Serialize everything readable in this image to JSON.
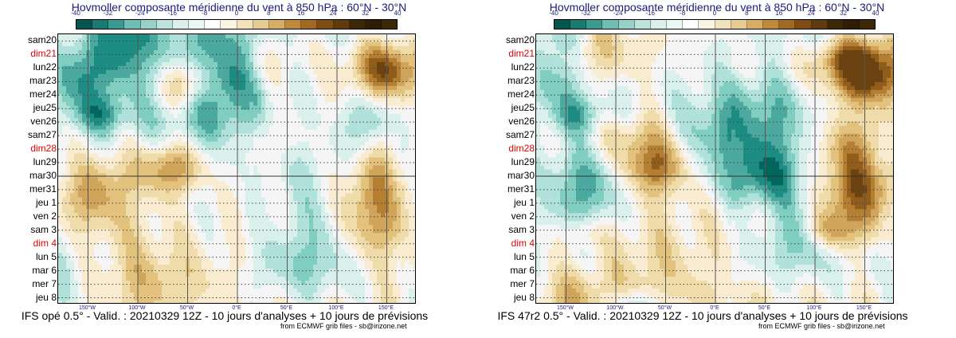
{
  "chart_data": [
    {
      "type": "heatmap",
      "title": "Hovmoller composante méridienne du vent à 850 hPa : 60°N - 30°N",
      "caption": "IFS opé 0.5° - Valid. : 20210329 12Z - 10 jours d'analyses + 10 jours de prévisions",
      "credit": "from ECMWF grib files - sb@irizone.net",
      "colorbar_ticks": [
        "-40",
        "-32",
        "-24",
        "-16",
        "-8",
        "0",
        "8",
        "16",
        "24",
        "32",
        "40"
      ],
      "y_labels": [
        "sam20",
        "dim21",
        "lun22",
        "mar23",
        "mer24",
        "jeu25",
        "ven26",
        "sam27",
        "dim28",
        "lun29",
        "mar30",
        "mer31",
        "jeu 1",
        "ven 2",
        "sam 3",
        "dim 4",
        "lun 5",
        "mar 6",
        "mer 7",
        "jeu 8"
      ],
      "weekend_labels": [
        "dim21",
        "dim28",
        "dim 4"
      ],
      "x_labels": [
        "150°W",
        "100°W",
        "50°W",
        "0°E",
        "50°E",
        "100°E",
        "150°E"
      ],
      "x_values": [
        -150,
        -100,
        -50,
        0,
        50,
        100,
        150
      ],
      "xlim": [
        -180,
        180
      ],
      "analysis_forecast_split": "mar30",
      "seed": 7
    },
    {
      "type": "heatmap",
      "title": "Hovmoller composante méridienne du vent à 850 hPa : 60°N - 30°N",
      "caption": "IFS 47r2 0.5° - Valid. : 20210329 12Z - 10 jours d'analyses + 10 jours de prévisions",
      "credit": "from ECMWF grib files - sb@irizone.net",
      "colorbar_ticks": [
        "-40",
        "-32",
        "-24",
        "-16",
        "-8",
        "0",
        "8",
        "16",
        "24",
        "32",
        "40"
      ],
      "y_labels": [
        "sam20",
        "dim21",
        "lun22",
        "mar23",
        "mer24",
        "jeu25",
        "ven26",
        "sam27",
        "dim28",
        "lun29",
        "mar30",
        "mer31",
        "jeu 1",
        "ven 2",
        "sam 3",
        "dim 4",
        "lun 5",
        "mar 6",
        "mer 7",
        "jeu 8"
      ],
      "weekend_labels": [
        "dim21",
        "dim28",
        "dim 4"
      ],
      "x_labels": [
        "150°W",
        "100°W",
        "50°W",
        "0°E",
        "50°E",
        "100°E",
        "150°E"
      ],
      "x_values": [
        -150,
        -100,
        -50,
        0,
        50,
        100,
        150
      ],
      "xlim": [
        -180,
        180
      ],
      "analysis_forecast_split": "mar30",
      "seed": 11
    }
  ],
  "colors": {
    "palette": [
      "#01665e",
      "#1d8c82",
      "#4ca9a0",
      "#80cdc1",
      "#b0e1da",
      "#d9f0ec",
      "#f5f5f5",
      "#f9ecd0",
      "#f0dcaa",
      "#e2c27d",
      "#d0a45a",
      "#b57f33",
      "#925d1a",
      "#6b4210"
    ],
    "colorbar": [
      "#05564f",
      "#1a7a72",
      "#3a9990",
      "#6fbdb3",
      "#99d1c8",
      "#bde3dc",
      "#d9f0ec",
      "#eaf6f4",
      "#ffffff",
      "#fbf3e1",
      "#f3e3bd",
      "#e7cc92",
      "#d6ae64",
      "#c08a3c",
      "#a26922",
      "#7e4d14",
      "#5f3b0e",
      "#3f2808",
      "#2f1e06",
      "#c9a55a"
    ],
    "title": "#1a1a7a",
    "weekend": "#e00000",
    "weekday": "#000000"
  }
}
